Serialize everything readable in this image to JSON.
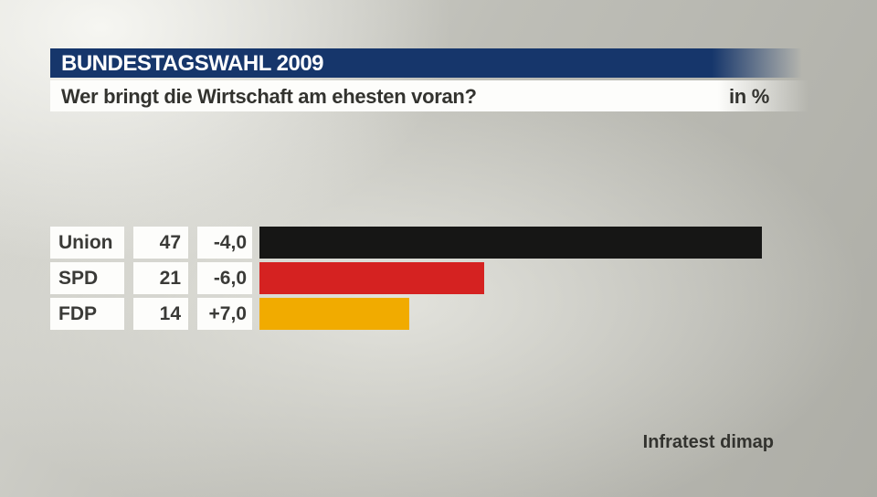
{
  "header": {
    "title": "BUNDESTAGSWAHL 2009",
    "question": "Wer bringt die Wirtschaft am ehesten voran?",
    "unit": "in %"
  },
  "chart_data": {
    "type": "bar",
    "orientation": "horizontal",
    "title": "Wer bringt die Wirtschaft am ehesten voran?",
    "unit": "in %",
    "xlim": [
      0,
      50
    ],
    "grid": false,
    "legend": false,
    "rows": [
      {
        "party": "Union",
        "value": 47,
        "change": "-4,0",
        "color": "#161615"
      },
      {
        "party": "SPD",
        "value": 21,
        "change": "-6,0",
        "color": "#d52221"
      },
      {
        "party": "FDP",
        "value": 14,
        "change": "+7,0",
        "color": "#f1ab00"
      }
    ]
  },
  "footer": {
    "source": "Infratest dimap"
  },
  "colors": {
    "header_blue": "#16366b",
    "bar_union": "#161615",
    "bar_spd": "#d52221",
    "bar_fdp": "#f1ab00"
  }
}
